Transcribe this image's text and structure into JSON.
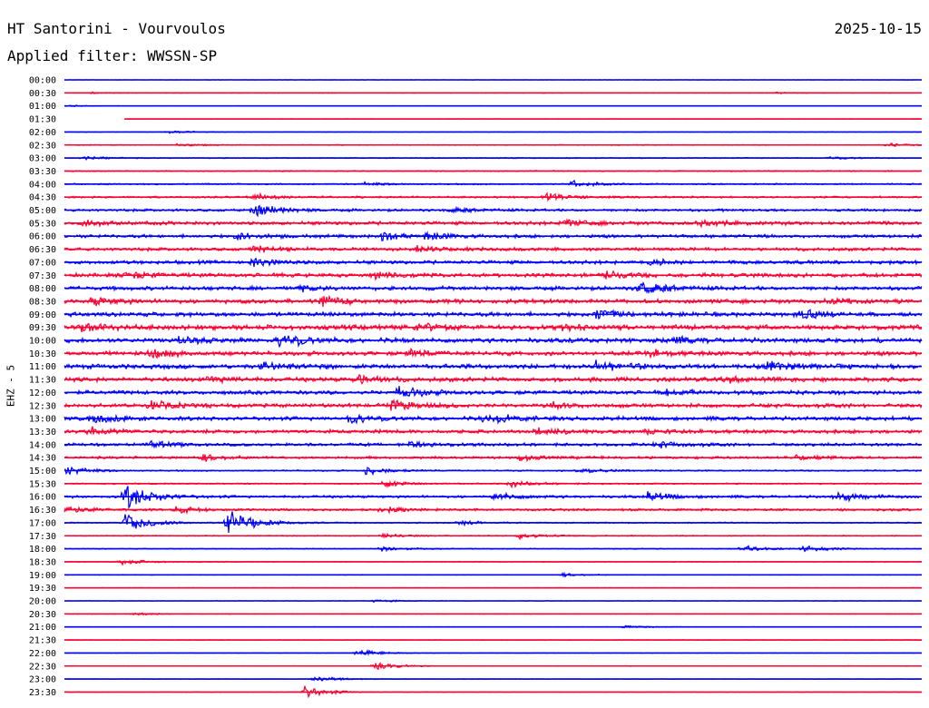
{
  "header": {
    "title": "HT Santorini - Vourvoulos",
    "date": "2025-10-15",
    "filter": "Applied filter: WWSSN-SP"
  },
  "chart_data": {
    "type": "line",
    "title": "HT Santorini - Vourvoulos",
    "channel_label": "EHZ - 5",
    "colors": [
      "#0000ff",
      "#ff0033"
    ],
    "rows": [
      {
        "label": "00:00",
        "noise": 0.2,
        "events": [],
        "start": 0
      },
      {
        "label": "00:30",
        "noise": 0.3,
        "events": [
          {
            "x": 0.03,
            "a": 1
          },
          {
            "x": 0.83,
            "a": 1
          }
        ],
        "start": 0
      },
      {
        "label": "01:00",
        "noise": 0.2,
        "events": [
          {
            "x": 0.005,
            "a": 1
          }
        ],
        "start": 0
      },
      {
        "label": "01:30",
        "noise": 0.2,
        "events": [],
        "start": 0.07
      },
      {
        "label": "02:00",
        "noise": 0.35,
        "events": [
          {
            "x": 0.12,
            "a": 2
          }
        ],
        "start": 0
      },
      {
        "label": "02:30",
        "noise": 0.5,
        "events": [
          {
            "x": 0.13,
            "a": 2
          },
          {
            "x": 0.96,
            "a": 2
          }
        ],
        "start": 0
      },
      {
        "label": "03:00",
        "noise": 0.6,
        "events": [
          {
            "x": 0.02,
            "a": 2
          },
          {
            "x": 0.89,
            "a": 2
          }
        ],
        "start": 0
      },
      {
        "label": "03:30",
        "noise": 0.7,
        "events": [],
        "start": 0
      },
      {
        "label": "04:00",
        "noise": 0.9,
        "events": [
          {
            "x": 0.59,
            "a": 4
          },
          {
            "x": 0.35,
            "a": 2
          }
        ],
        "start": 0
      },
      {
        "label": "04:30",
        "noise": 1.2,
        "events": [
          {
            "x": 0.22,
            "a": 4
          },
          {
            "x": 0.56,
            "a": 5
          }
        ],
        "start": 0
      },
      {
        "label": "05:00",
        "noise": 1.6,
        "events": [
          {
            "x": 0.22,
            "a": 9
          },
          {
            "x": 0.45,
            "a": 3
          }
        ],
        "start": 0
      },
      {
        "label": "05:30",
        "noise": 2.2,
        "events": [
          {
            "x": 0.02,
            "a": 4
          },
          {
            "x": 0.58,
            "a": 4
          },
          {
            "x": 0.74,
            "a": 4
          }
        ],
        "start": 0
      },
      {
        "label": "06:00",
        "noise": 2.0,
        "events": [
          {
            "x": 0.2,
            "a": 5
          },
          {
            "x": 0.37,
            "a": 5
          },
          {
            "x": 0.42,
            "a": 4
          }
        ],
        "start": 0
      },
      {
        "label": "06:30",
        "noise": 2.0,
        "events": [
          {
            "x": 0.22,
            "a": 4
          },
          {
            "x": 0.41,
            "a": 4
          }
        ],
        "start": 0
      },
      {
        "label": "07:00",
        "noise": 2.2,
        "events": [
          {
            "x": 0.22,
            "a": 5
          },
          {
            "x": 0.68,
            "a": 4
          }
        ],
        "start": 0
      },
      {
        "label": "07:30",
        "noise": 2.4,
        "events": [
          {
            "x": 0.07,
            "a": 5
          },
          {
            "x": 0.36,
            "a": 4
          },
          {
            "x": 0.63,
            "a": 4
          }
        ],
        "start": 0
      },
      {
        "label": "08:00",
        "noise": 2.4,
        "events": [
          {
            "x": 0.67,
            "a": 9
          },
          {
            "x": 0.27,
            "a": 3
          }
        ],
        "start": 0
      },
      {
        "label": "08:30",
        "noise": 2.6,
        "events": [
          {
            "x": 0.03,
            "a": 5
          },
          {
            "x": 0.3,
            "a": 5
          },
          {
            "x": 0.89,
            "a": 4
          }
        ],
        "start": 0
      },
      {
        "label": "09:00",
        "noise": 2.6,
        "events": [
          {
            "x": 0.62,
            "a": 7
          },
          {
            "x": 0.86,
            "a": 5
          }
        ],
        "start": 0
      },
      {
        "label": "09:30",
        "noise": 3.0,
        "events": [
          {
            "x": 0.02,
            "a": 5
          },
          {
            "x": 0.41,
            "a": 6
          },
          {
            "x": 0.58,
            "a": 4
          }
        ],
        "start": 0
      },
      {
        "label": "10:00",
        "noise": 2.8,
        "events": [
          {
            "x": 0.25,
            "a": 9
          },
          {
            "x": 0.13,
            "a": 4
          },
          {
            "x": 0.7,
            "a": 4
          }
        ],
        "start": 0
      },
      {
        "label": "10:30",
        "noise": 2.6,
        "events": [
          {
            "x": 0.1,
            "a": 5
          },
          {
            "x": 0.4,
            "a": 4
          },
          {
            "x": 0.68,
            "a": 4
          }
        ],
        "start": 0
      },
      {
        "label": "11:00",
        "noise": 2.8,
        "events": [
          {
            "x": 0.23,
            "a": 5
          },
          {
            "x": 0.62,
            "a": 7
          },
          {
            "x": 0.82,
            "a": 5
          }
        ],
        "start": 0
      },
      {
        "label": "11:30",
        "noise": 2.6,
        "events": [
          {
            "x": 0.17,
            "a": 4
          },
          {
            "x": 0.34,
            "a": 5
          },
          {
            "x": 0.77,
            "a": 4
          }
        ],
        "start": 0
      },
      {
        "label": "12:00",
        "noise": 2.4,
        "events": [
          {
            "x": 0.39,
            "a": 7
          },
          {
            "x": 0.7,
            "a": 4
          }
        ],
        "start": 0
      },
      {
        "label": "12:30",
        "noise": 2.4,
        "events": [
          {
            "x": 0.1,
            "a": 5
          },
          {
            "x": 0.38,
            "a": 7
          },
          {
            "x": 0.57,
            "a": 4
          }
        ],
        "start": 0
      },
      {
        "label": "13:00",
        "noise": 2.4,
        "events": [
          {
            "x": 0.03,
            "a": 7
          },
          {
            "x": 0.33,
            "a": 6
          },
          {
            "x": 0.49,
            "a": 7
          }
        ],
        "start": 0
      },
      {
        "label": "13:30",
        "noise": 2.2,
        "events": [
          {
            "x": 0.03,
            "a": 5
          },
          {
            "x": 0.55,
            "a": 4
          },
          {
            "x": 0.68,
            "a": 4
          }
        ],
        "start": 0
      },
      {
        "label": "14:00",
        "noise": 1.8,
        "events": [
          {
            "x": 0.1,
            "a": 4
          },
          {
            "x": 0.4,
            "a": 5
          },
          {
            "x": 0.69,
            "a": 4
          }
        ],
        "start": 0
      },
      {
        "label": "14:30",
        "noise": 1.6,
        "events": [
          {
            "x": 0.16,
            "a": 4
          },
          {
            "x": 0.53,
            "a": 4
          },
          {
            "x": 0.85,
            "a": 4
          }
        ],
        "start": 0
      },
      {
        "label": "15:00",
        "noise": 0.9,
        "events": [
          {
            "x": 0.0,
            "a": 6
          },
          {
            "x": 0.35,
            "a": 5
          },
          {
            "x": 0.6,
            "a": 4
          }
        ],
        "start": 0
      },
      {
        "label": "15:30",
        "noise": 0.8,
        "events": [
          {
            "x": 0.37,
            "a": 5
          },
          {
            "x": 0.52,
            "a": 4
          }
        ],
        "start": 0
      },
      {
        "label": "16:00",
        "noise": 1.6,
        "events": [
          {
            "x": 0.07,
            "a": 18
          },
          {
            "x": 0.5,
            "a": 5
          },
          {
            "x": 0.68,
            "a": 6
          },
          {
            "x": 0.9,
            "a": 6
          }
        ],
        "start": 0
      },
      {
        "label": "16:30",
        "noise": 1.4,
        "events": [
          {
            "x": 0.0,
            "a": 5
          },
          {
            "x": 0.13,
            "a": 4
          },
          {
            "x": 0.37,
            "a": 4
          }
        ],
        "start": 0
      },
      {
        "label": "17:00",
        "noise": 0.8,
        "events": [
          {
            "x": 0.07,
            "a": 14
          },
          {
            "x": 0.19,
            "a": 20
          },
          {
            "x": 0.46,
            "a": 3
          }
        ],
        "start": 0
      },
      {
        "label": "17:30",
        "noise": 0.6,
        "events": [
          {
            "x": 0.37,
            "a": 3
          },
          {
            "x": 0.53,
            "a": 4
          }
        ],
        "start": 0
      },
      {
        "label": "18:00",
        "noise": 0.6,
        "events": [
          {
            "x": 0.37,
            "a": 3
          },
          {
            "x": 0.79,
            "a": 4
          },
          {
            "x": 0.86,
            "a": 4
          }
        ],
        "start": 0
      },
      {
        "label": "18:30",
        "noise": 0.5,
        "events": [
          {
            "x": 0.065,
            "a": 4
          }
        ],
        "start": 0
      },
      {
        "label": "19:00",
        "noise": 0.4,
        "events": [
          {
            "x": 0.58,
            "a": 2
          }
        ],
        "start": 0
      },
      {
        "label": "19:30",
        "noise": 0.3,
        "events": [],
        "start": 0
      },
      {
        "label": "20:00",
        "noise": 0.3,
        "events": [
          {
            "x": 0.36,
            "a": 2
          }
        ],
        "start": 0
      },
      {
        "label": "20:30",
        "noise": 0.3,
        "events": [
          {
            "x": 0.08,
            "a": 2
          }
        ],
        "start": 0
      },
      {
        "label": "21:00",
        "noise": 0.3,
        "events": [
          {
            "x": 0.65,
            "a": 2
          }
        ],
        "start": 0
      },
      {
        "label": "21:30",
        "noise": 0.3,
        "events": [],
        "start": 0
      },
      {
        "label": "22:00",
        "noise": 0.3,
        "events": [
          {
            "x": 0.34,
            "a": 5
          }
        ],
        "start": 0
      },
      {
        "label": "22:30",
        "noise": 0.3,
        "events": [
          {
            "x": 0.36,
            "a": 5
          }
        ],
        "start": 0
      },
      {
        "label": "23:00",
        "noise": 0.3,
        "events": [
          {
            "x": 0.29,
            "a": 5
          }
        ],
        "start": 0
      },
      {
        "label": "23:30",
        "noise": 0.3,
        "events": [
          {
            "x": 0.28,
            "a": 8
          }
        ],
        "start": 0
      }
    ]
  }
}
